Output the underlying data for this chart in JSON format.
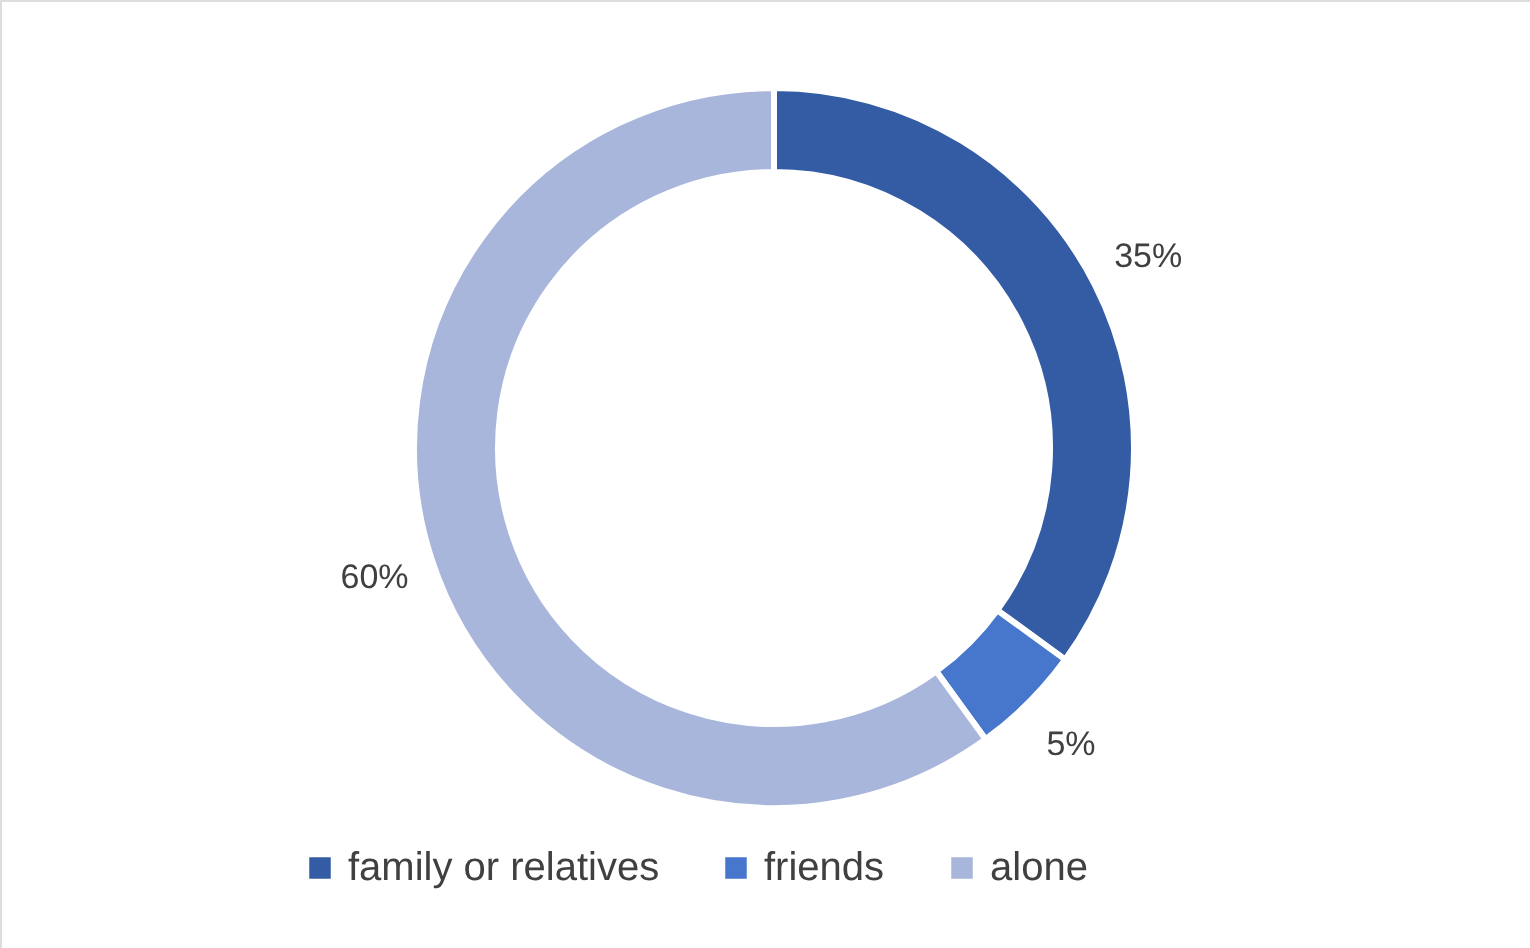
{
  "chart_data": {
    "type": "donut",
    "categories": [
      "family or relatives",
      "friends",
      "alone"
    ],
    "values": [
      35,
      5,
      60
    ],
    "colors": [
      "#335ca5",
      "#4677cc",
      "#a9b6dc"
    ],
    "value_labels": [
      "35%",
      "5%",
      "60%"
    ],
    "legend": "bottom"
  }
}
